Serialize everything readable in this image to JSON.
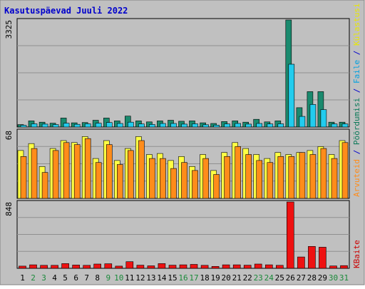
{
  "chart_data": {
    "type": "bar",
    "title": "Kasutuspäevad Juuli 2022",
    "categories": [
      "1",
      "2",
      "3",
      "4",
      "5",
      "6",
      "7",
      "8",
      "9",
      "10",
      "11",
      "12",
      "13",
      "14",
      "15",
      "16",
      "17",
      "18",
      "19",
      "20",
      "21",
      "22",
      "23",
      "24",
      "25",
      "26",
      "27",
      "28",
      "29",
      "30",
      "31"
    ],
    "weekend_days": [
      "2",
      "3",
      "9",
      "10",
      "16",
      "17",
      "23",
      "24",
      "30",
      "31"
    ],
    "grid": true,
    "legend": "right-vertical",
    "panels": [
      {
        "id": "top",
        "ymax_label": "3325",
        "ylim": [
          0,
          3325
        ],
        "legend_labels": [
          {
            "text": "Pöördumisi",
            "color": "#0d7a5a"
          },
          {
            "text": " / ",
            "color": "#0000cc"
          },
          {
            "text": "Faile",
            "color": "#00a0e0"
          },
          {
            "text": " / ",
            "color": "#0000cc"
          },
          {
            "text": "Külastusi",
            "color": "#e8e800"
          }
        ],
        "series": [
          {
            "name": "Pöördumisi",
            "color": "#1a8a6e",
            "values": [
              75,
              190,
              150,
              120,
              280,
              130,
              140,
              210,
              280,
              190,
              340,
              190,
              160,
              190,
              210,
              180,
              190,
              130,
              110,
              170,
              190,
              150,
              240,
              160,
              190,
              3325,
              600,
              1100,
              1100,
              150,
              150
            ]
          },
          {
            "name": "Faile",
            "color": "#22ccee",
            "values": [
              55,
              100,
              90,
              75,
              120,
              85,
              100,
              120,
              140,
              110,
              150,
              95,
              80,
              110,
              110,
              90,
              100,
              70,
              60,
              95,
              110,
              90,
              110,
              95,
              100,
              1950,
              330,
              700,
              540,
              95,
              95
            ]
          }
        ]
      },
      {
        "id": "middle",
        "ymax_label": "68",
        "ylim": [
          0,
          68
        ],
        "series": [
          {
            "name": "Külastusi",
            "color": "#ffff44",
            "values": [
              48,
              55,
              32,
              50,
              58,
              56,
              62,
              40,
              58,
              38,
              50,
              62,
              44,
              45,
              38,
              42,
              32,
              44,
              28,
              46,
              56,
              50,
              44,
              40,
              46,
              44,
              46,
              48,
              52,
              44,
              58
            ]
          },
          {
            "name": "Arvuteid",
            "color": "#ff8c1a",
            "values": [
              42,
              50,
              26,
              48,
              56,
              54,
              60,
              36,
              54,
              34,
              48,
              58,
              40,
              40,
              30,
              36,
              28,
              40,
              24,
              42,
              52,
              44,
              38,
              36,
              42,
              42,
              46,
              44,
              50,
              40,
              56
            ]
          }
        ]
      },
      {
        "id": "bottom",
        "ymax_label": "848",
        "ylim": [
          0,
          848
        ],
        "legend_labels": [
          {
            "text": "KBaite",
            "color": "#cc0000"
          }
        ],
        "series": [
          {
            "name": "KBaite",
            "color": "#ee1111",
            "values": [
              28,
              45,
              38,
              38,
              60,
              42,
              38,
              55,
              58,
              28,
              85,
              40,
              32,
              60,
              40,
              45,
              50,
              38,
              25,
              45,
              45,
              40,
              55,
              45,
              38,
              848,
              145,
              280,
              270,
              30,
              35
            ]
          }
        ]
      }
    ],
    "middle_legend_labels": [
      {
        "text": "Arvuteid",
        "color": "#ff8c1a"
      },
      {
        "text": " / ",
        "color": "#0000cc"
      }
    ]
  },
  "colors": {
    "background": "#c0c0c0",
    "plot_background": "#c0c0c0",
    "gridline": "#909090",
    "title": "#0000cc",
    "weekday_tick": "#000000",
    "weekend_tick": "#1a8a3a"
  }
}
